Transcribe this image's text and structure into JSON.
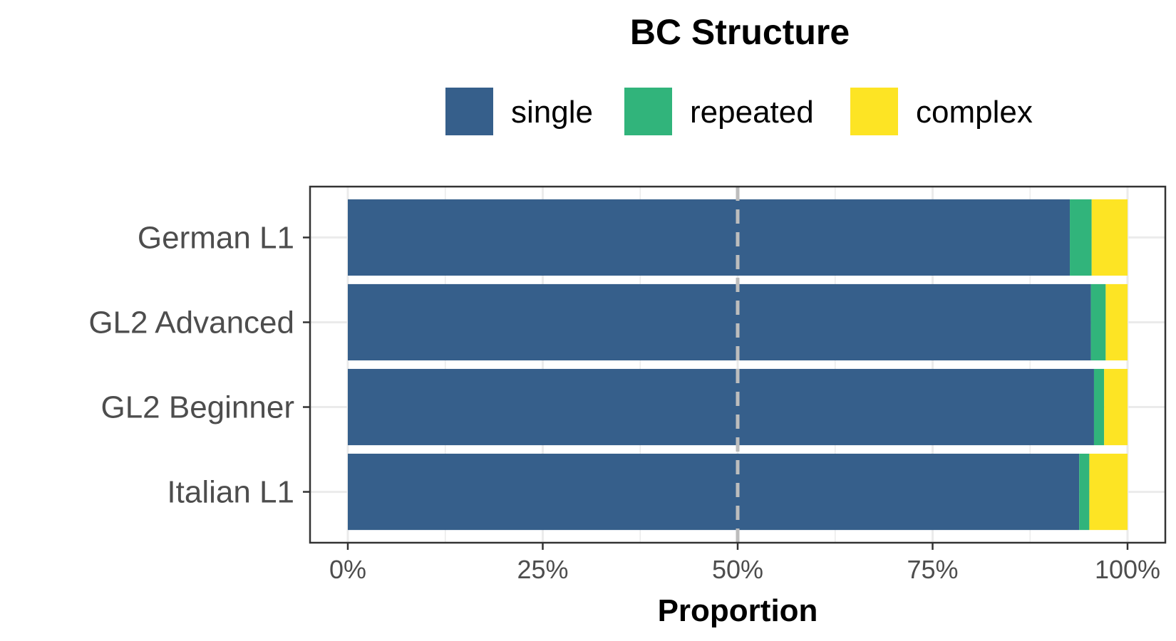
{
  "chart_data": {
    "type": "bar",
    "orientation": "horizontal",
    "stacked": true,
    "legend_title": "BC Structure",
    "legend_position": "top",
    "categories": [
      "German L1",
      "GL2 Advanced",
      "GL2 Beginner",
      "Italian L1"
    ],
    "series": [
      {
        "name": "single",
        "color": "#365f8b",
        "values": [
          0.926,
          0.953,
          0.957,
          0.938
        ]
      },
      {
        "name": "repeated",
        "color": "#31b47b",
        "values": [
          0.028,
          0.019,
          0.013,
          0.013
        ]
      },
      {
        "name": "complex",
        "color": "#fde424",
        "values": [
          0.046,
          0.028,
          0.03,
          0.049
        ]
      }
    ],
    "x_ticks": [
      0,
      0.25,
      0.5,
      0.75,
      1.0
    ],
    "x_tick_labels": [
      "0%",
      "25%",
      "50%",
      "75%",
      "100%"
    ],
    "xlabel": "Proportion",
    "ylabel": "",
    "xlim": [
      0,
      1
    ],
    "reference_line": {
      "x": 0.5,
      "style": "dashed",
      "color": "#bdbdbd"
    },
    "grid": true,
    "grid_color": "#ebebeb",
    "panel_border_color": "#333333"
  }
}
